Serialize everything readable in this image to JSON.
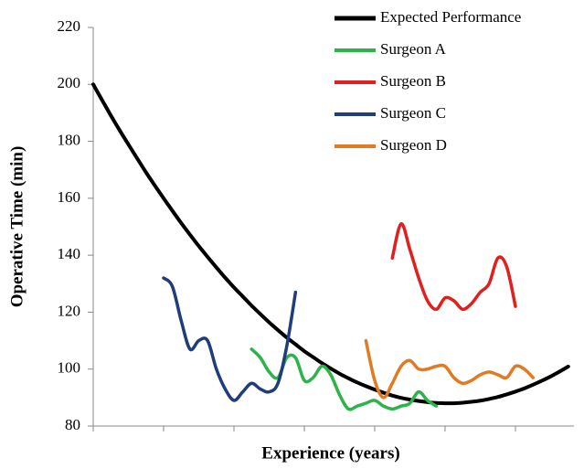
{
  "chart_data": {
    "type": "line",
    "x_label": "Experience (years)",
    "y_label": "Operative Time (min)",
    "categories": [
      null,
      null,
      null,
      null,
      null,
      null,
      null,
      null,
      null,
      null,
      null,
      null,
      null,
      null,
      null,
      null,
      null,
      null,
      null,
      null,
      null,
      null,
      null,
      null,
      null,
      null,
      null,
      null,
      null,
      null,
      null,
      null,
      null,
      null,
      null,
      null,
      null,
      null,
      null,
      null,
      null,
      null,
      null,
      null,
      null,
      null,
      null,
      null,
      null,
      null,
      null,
      null,
      null,
      null,
      null
    ],
    "ylim": [
      80,
      220
    ],
    "yticks": [
      80,
      100,
      120,
      140,
      160,
      180,
      200,
      220
    ],
    "legend": "top-right",
    "series": [
      {
        "name": "Expected Performance",
        "color": "#000000",
        "values": [
          200,
          194.5,
          189.1,
          183.9,
          178.9,
          174,
          169.1,
          164.5,
          160,
          155.6,
          151.3,
          147.2,
          143.2,
          139.4,
          135.7,
          132.1,
          128.7,
          125.5,
          122.3,
          119.3,
          116.4,
          113.7,
          111.1,
          108.7,
          106.3,
          104.2,
          102.1,
          100.2,
          98.4,
          96.8,
          95.3,
          94,
          92.8,
          91.7,
          90.7,
          89.9,
          89.3,
          88.8,
          88.4,
          88.1,
          88,
          88,
          88.2,
          88.5,
          88.9,
          89.5,
          90.2,
          91.1,
          92.1,
          93.2,
          94.5,
          95.9,
          97.4,
          99.1,
          100.9
        ]
      },
      {
        "name": "Surgeon A",
        "color": "#2db34a",
        "values": [
          null,
          null,
          null,
          null,
          null,
          null,
          null,
          null,
          null,
          null,
          null,
          null,
          null,
          null,
          null,
          null,
          null,
          null,
          107,
          104,
          99,
          97,
          104,
          104,
          96,
          97,
          101,
          98,
          91,
          86,
          87,
          88,
          89,
          87,
          86,
          87,
          88,
          92,
          89,
          87,
          null,
          null,
          null,
          null,
          null,
          null,
          null,
          null,
          null,
          null,
          null,
          null,
          null,
          null,
          null
        ]
      },
      {
        "name": "Surgeon B",
        "color": "#e0201f",
        "values": [
          null,
          null,
          null,
          null,
          null,
          null,
          null,
          null,
          null,
          null,
          null,
          null,
          null,
          null,
          null,
          null,
          null,
          null,
          null,
          null,
          null,
          null,
          null,
          null,
          null,
          null,
          null,
          null,
          null,
          null,
          null,
          null,
          null,
          null,
          139,
          151,
          142,
          132,
          124,
          121,
          125,
          124,
          121,
          123,
          127,
          130,
          139,
          136,
          122,
          null,
          null,
          null,
          null,
          null,
          null
        ]
      },
      {
        "name": "Surgeon C",
        "color": "#1f3d7a",
        "values": [
          null,
          null,
          null,
          null,
          null,
          null,
          null,
          null,
          132,
          129,
          117,
          107,
          110,
          110,
          100,
          93,
          89,
          92,
          95,
          93,
          92,
          95,
          108,
          127,
          null,
          null,
          null,
          null,
          null,
          null,
          null,
          null,
          null,
          null,
          null,
          null,
          null,
          null,
          null,
          null,
          null,
          null,
          null,
          null,
          null,
          null,
          null,
          null,
          null,
          null,
          null,
          null,
          null,
          null,
          null
        ]
      },
      {
        "name": "Surgeon D",
        "color": "#e07b24",
        "values": [
          null,
          null,
          null,
          null,
          null,
          null,
          null,
          null,
          null,
          null,
          null,
          null,
          null,
          null,
          null,
          null,
          null,
          null,
          null,
          null,
          null,
          null,
          null,
          null,
          null,
          null,
          null,
          null,
          null,
          null,
          null,
          110,
          96,
          90,
          95,
          101,
          103,
          100,
          100,
          101,
          101,
          97,
          95,
          96,
          98,
          99,
          98,
          97,
          101,
          100,
          97,
          null,
          null,
          null,
          null
        ]
      }
    ]
  }
}
